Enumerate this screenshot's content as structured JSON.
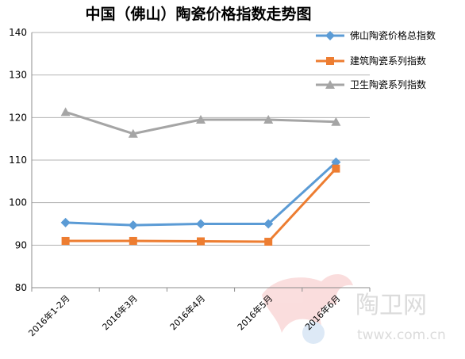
{
  "chart_data": {
    "type": "line",
    "title": "中国（佛山）陶瓷价格指数走势图",
    "categories": [
      "2016年1-2月",
      "2016年3月",
      "2016年4月",
      "2016年5月",
      "2016年6月"
    ],
    "ylim": [
      80,
      140
    ],
    "yticks": [
      80,
      90,
      100,
      110,
      120,
      130,
      140
    ],
    "grid": true,
    "legend_position": "top-right",
    "series": [
      {
        "name": "佛山陶瓷价格总指数",
        "color": "#5b9bd5",
        "marker": "diamond",
        "values": [
          95.3,
          94.7,
          95.0,
          95.0,
          109.5
        ]
      },
      {
        "name": "建筑陶瓷系列指数",
        "color": "#ed7d31",
        "marker": "square",
        "values": [
          91.0,
          91.0,
          90.9,
          90.8,
          108.0
        ]
      },
      {
        "name": "卫生陶瓷系列指数",
        "color": "#a5a5a5",
        "marker": "triangle",
        "values": [
          121.3,
          116.2,
          119.5,
          119.5,
          119.0
        ]
      }
    ]
  },
  "watermark": {
    "site_name": "陶卫网",
    "url": "twwx.com.cn"
  }
}
